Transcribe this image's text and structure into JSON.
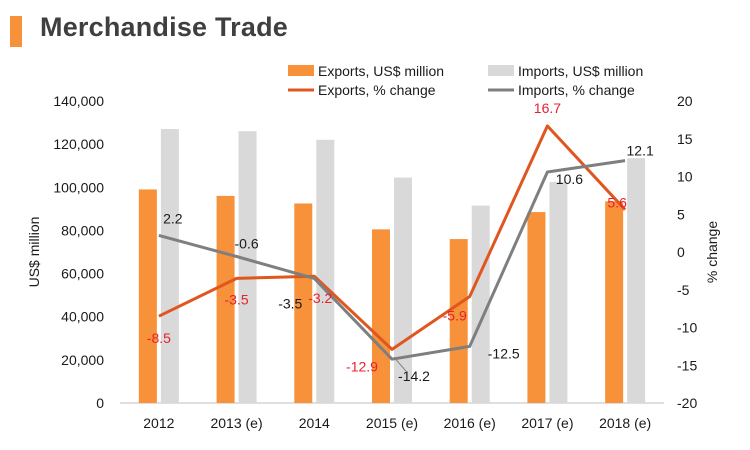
{
  "title": "Merchandise Trade",
  "chart_data": {
    "type": "bar",
    "categories": [
      "2012",
      "2013 (e)",
      "2014",
      "2015  (e)",
      "2016  (e)",
      "2017  (e)",
      "2018  (e)"
    ],
    "series": [
      {
        "name": "Exports, US$ million",
        "kind": "bar",
        "axis": "left",
        "color": "#f7923a",
        "values": [
          99000,
          96000,
          92500,
          80500,
          76000,
          88500,
          93500
        ]
      },
      {
        "name": "Imports, US$ million",
        "kind": "bar",
        "axis": "left",
        "color": "#d9d9d9",
        "values": [
          127000,
          126000,
          122000,
          104500,
          91500,
          102500,
          113500
        ]
      },
      {
        "name": "Exports, % change",
        "kind": "line",
        "axis": "right",
        "color": "#e0561f",
        "label_color": "#e8212d",
        "values": [
          -8.5,
          -3.5,
          -3.2,
          -12.9,
          -5.9,
          16.7,
          5.6
        ],
        "labels": [
          "-8.5",
          "-3.5",
          "-3.2",
          "-12.9",
          "-5.9",
          "16.7",
          "5.6"
        ]
      },
      {
        "name": "Imports, % change",
        "kind": "line",
        "axis": "right",
        "color": "#7f7f7f",
        "label_color": "#1a1a1a",
        "values": [
          2.2,
          -0.6,
          -3.5,
          -14.2,
          -12.5,
          10.6,
          12.1
        ],
        "labels": [
          "2.2",
          "-0.6",
          "-3.5",
          "-14.2",
          "-12.5",
          "10.6",
          "12.1"
        ]
      }
    ],
    "ylabel": "US$ million",
    "y2label": "% change",
    "ylim": [
      0,
      140000
    ],
    "y2lim": [
      -20,
      20
    ],
    "yticks": [
      "0",
      "20,000",
      "40,000",
      "60,000",
      "80,000",
      "100,000",
      "120,000",
      "140,000"
    ],
    "y2ticks": [
      "-20",
      "-15",
      "-10",
      "-5",
      "0",
      "5",
      "10",
      "15",
      "20"
    ],
    "grid": false,
    "legend": "top"
  }
}
